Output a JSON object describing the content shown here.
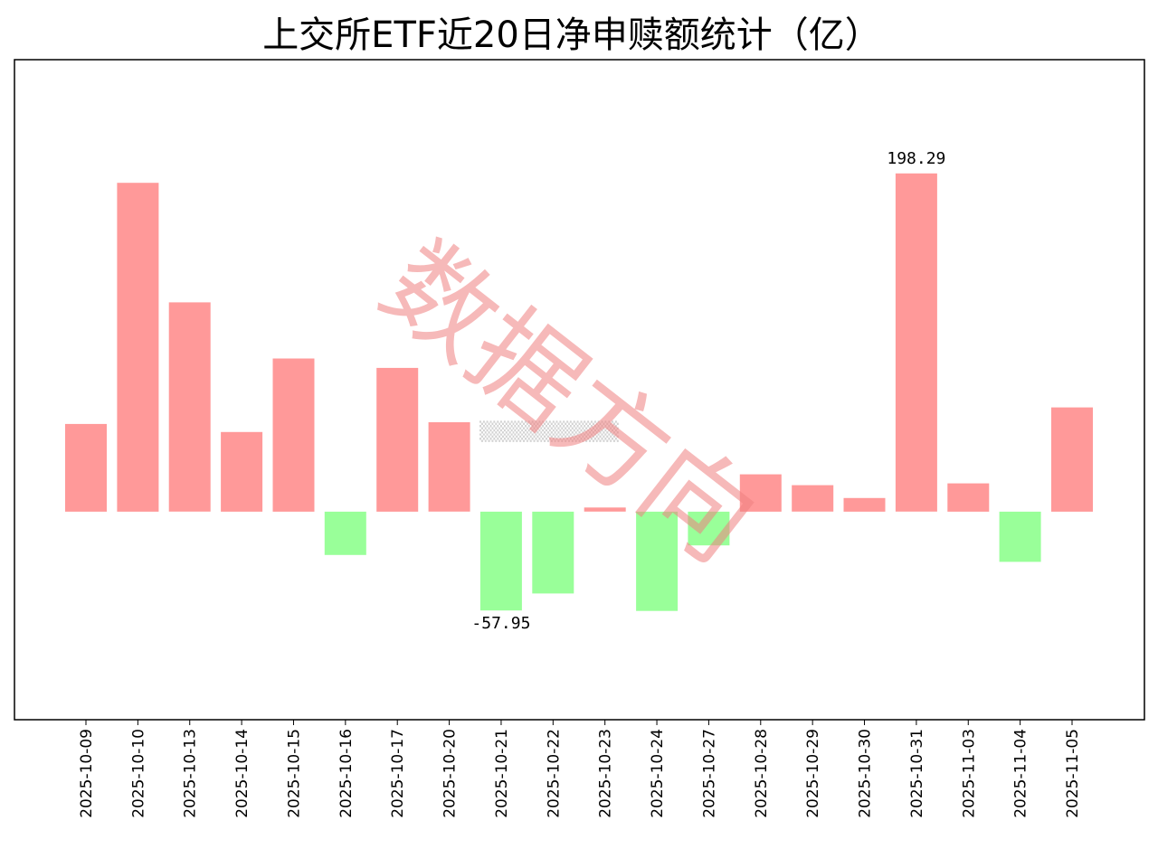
{
  "chart_data": {
    "type": "bar",
    "title": "上交所ETF近20日净申赎额统计（亿）",
    "categories": [
      "2025-10-09",
      "2025-10-10",
      "2025-10-13",
      "2025-10-14",
      "2025-10-15",
      "2025-10-16",
      "2025-10-17",
      "2025-10-20",
      "2025-10-21",
      "2025-10-22",
      "2025-10-23",
      "2025-10-24",
      "2025-10-27",
      "2025-10-28",
      "2025-10-29",
      "2025-10-30",
      "2025-10-31",
      "2025-11-03",
      "2025-11-04",
      "2025-11-05"
    ],
    "values": [
      51.4,
      192.8,
      122.7,
      46.7,
      89.8,
      -25.4,
      84.3,
      52.4,
      -57.95,
      -48.0,
      2.4,
      -58.2,
      -19.8,
      21.9,
      15.5,
      8.0,
      198.29,
      16.6,
      -29.4,
      61.1
    ],
    "ylim": [
      -122,
      265
    ],
    "positive_color": "#ff9999",
    "negative_color": "#99ff99",
    "annotations": [
      {
        "category": "2025-10-31",
        "text": "198.29"
      },
      {
        "category": "2025-10-21",
        "text": "-57.95"
      }
    ],
    "xlabel": "",
    "ylabel": "",
    "grid": false,
    "y_ticks_visible": false
  },
  "watermark": {
    "text": "数据方向",
    "color": "#f08080"
  }
}
